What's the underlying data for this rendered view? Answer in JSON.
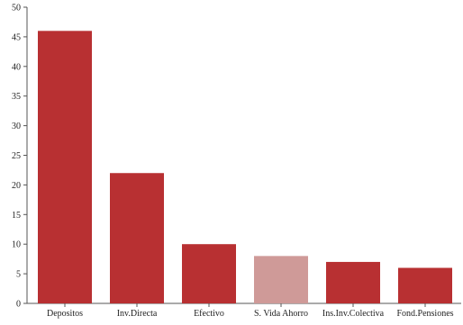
{
  "chart_data": {
    "type": "bar",
    "categories": [
      "Depositos",
      "Inv.Directa",
      "Efectivo",
      "S. Vida Ahorro",
      "Ins.Inv.Colectiva",
      "Fond.Pensiones"
    ],
    "values": [
      46,
      22,
      10,
      8,
      7,
      6
    ],
    "ylim": [
      0,
      50
    ],
    "yticks": [
      0,
      5,
      10,
      15,
      20,
      25,
      30,
      35,
      40,
      45,
      50
    ],
    "grid": false,
    "legend": "none",
    "colors": {
      "bar": "#b83032",
      "bar_highlight": "#cf9a98",
      "axis": "#555555"
    },
    "highlight_index": 3
  }
}
